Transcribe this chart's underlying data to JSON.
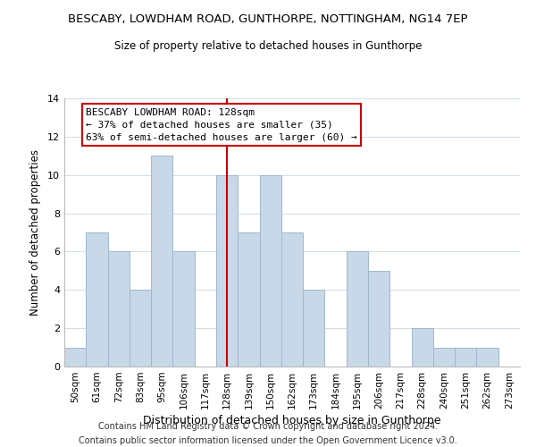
{
  "title_line1": "BESCABY, LOWDHAM ROAD, GUNTHORPE, NOTTINGHAM, NG14 7EP",
  "title_line2": "Size of property relative to detached houses in Gunthorpe",
  "xlabel": "Distribution of detached houses by size in Gunthorpe",
  "ylabel": "Number of detached properties",
  "footer_line1": "Contains HM Land Registry data © Crown copyright and database right 2024.",
  "footer_line2": "Contains public sector information licensed under the Open Government Licence v3.0.",
  "bin_labels": [
    "50sqm",
    "61sqm",
    "72sqm",
    "83sqm",
    "95sqm",
    "106sqm",
    "117sqm",
    "128sqm",
    "139sqm",
    "150sqm",
    "162sqm",
    "173sqm",
    "184sqm",
    "195sqm",
    "206sqm",
    "217sqm",
    "228sqm",
    "240sqm",
    "251sqm",
    "262sqm",
    "273sqm"
  ],
  "bar_values": [
    1,
    7,
    6,
    4,
    11,
    6,
    0,
    10,
    7,
    10,
    7,
    4,
    0,
    6,
    5,
    0,
    2,
    1,
    1,
    1,
    0
  ],
  "highlight_index": 7,
  "bar_color": "#c8d8e8",
  "bar_edge_color": "#a0b8cc",
  "highlight_line_color": "#cc0000",
  "ylim": [
    0,
    14
  ],
  "yticks": [
    0,
    2,
    4,
    6,
    8,
    10,
    12,
    14
  ],
  "annotation_title": "BESCABY LOWDHAM ROAD: 128sqm",
  "annotation_line1": "← 37% of detached houses are smaller (35)",
  "annotation_line2": "63% of semi-detached houses are larger (60) →",
  "annotation_box_color": "#ffffff",
  "annotation_box_edge": "#cc0000",
  "title_fontsize": 9.5,
  "subtitle_fontsize": 8.5,
  "xlabel_fontsize": 9,
  "ylabel_fontsize": 8.5,
  "tick_fontsize": 7.5,
  "footer_fontsize": 7,
  "annotation_fontsize": 8
}
